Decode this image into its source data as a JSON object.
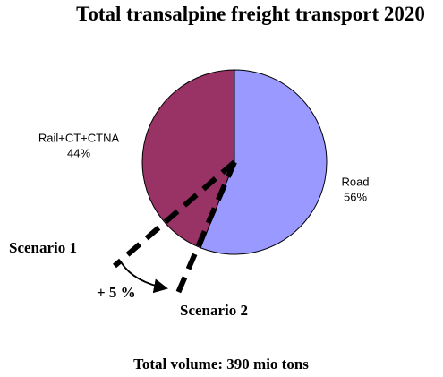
{
  "chart_data": {
    "type": "pie",
    "title": "Total transalpine freight transport 2020",
    "categories": [
      "Road",
      "Rail+CT+CTNA"
    ],
    "values": [
      56,
      44
    ],
    "value_labels": [
      "56%",
      "44%"
    ],
    "colors": [
      "#9999ff",
      "#993366"
    ],
    "annotations": [
      "Scenario 1",
      "Scenario 2",
      "+ 5 %"
    ],
    "footer": "Total volume: 390 mio tons"
  }
}
